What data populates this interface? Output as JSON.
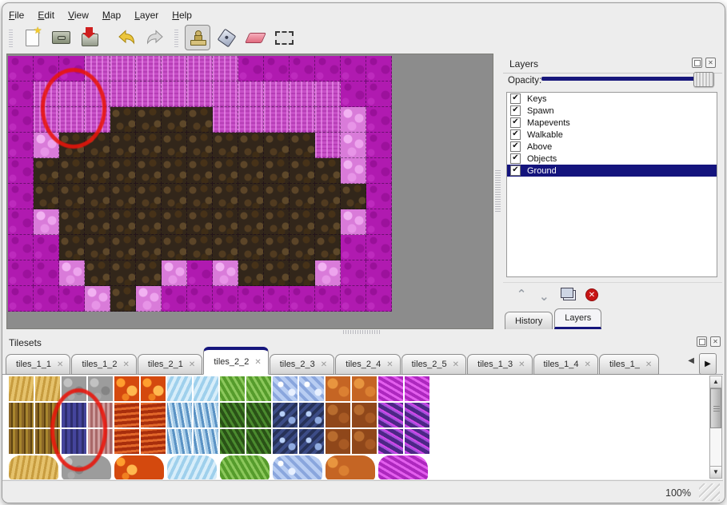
{
  "menu": {
    "items": [
      "File",
      "Edit",
      "View",
      "Map",
      "Layer",
      "Help"
    ]
  },
  "toolbar": {
    "buttons": [
      {
        "name": "new-map",
        "icon": "new-page-icon",
        "active": false
      },
      {
        "name": "open-map",
        "icon": "open-drawer-icon",
        "active": false
      },
      {
        "name": "save-map",
        "icon": "save-import-icon",
        "active": false
      },
      {
        "name": "undo",
        "icon": "undo-arrow-icon",
        "active": false
      },
      {
        "name": "redo",
        "icon": "redo-arrow-icon",
        "active": false
      },
      {
        "name": "stamp-tool",
        "icon": "stamp-icon",
        "active": true
      },
      {
        "name": "fill-tool",
        "icon": "paint-bucket-icon",
        "active": false
      },
      {
        "name": "eraser-tool",
        "icon": "eraser-icon",
        "active": false
      },
      {
        "name": "select-tool",
        "icon": "selection-rect-icon",
        "active": false
      }
    ]
  },
  "map": {
    "tile_size": 32,
    "cols": 15,
    "rows_count": 10,
    "legend": {
      "M": "dark-magenta-ground",
      "W": "bright-magenta-wall",
      "L": "light-pink-tuft",
      "B": "dark-brown-dirt"
    },
    "rows": [
      "MMMWWWWWWMMMMMM",
      "MWWWWWWWWWWWWMM",
      "MWWWBBBBWWWWWLM",
      "MLBBBBBBBBBBWLM",
      "MBBBBBBBBBBBBLM",
      "MBBBBBBBBBBBBBM",
      "MLBBBBBBBBBBBLM",
      "MMBBBBBBBBBBBMM",
      "MMLBBBLMLBBBLMM",
      "MMMLBLMMMMMMMMM"
    ],
    "annotation_color": "#e8150a"
  },
  "layers_panel": {
    "title": "Layers",
    "opacity_label": "Opacity:",
    "opacity_percent": 100,
    "layers": [
      {
        "label": "Keys",
        "checked": true,
        "selected": false
      },
      {
        "label": "Spawn",
        "checked": true,
        "selected": false
      },
      {
        "label": "Mapevents",
        "checked": true,
        "selected": false
      },
      {
        "label": "Walkable",
        "checked": true,
        "selected": false
      },
      {
        "label": "Above",
        "checked": true,
        "selected": false
      },
      {
        "label": "Objects",
        "checked": true,
        "selected": false
      },
      {
        "label": "Ground",
        "checked": true,
        "selected": true
      }
    ],
    "buttons": [
      "raise-layer",
      "lower-layer",
      "duplicate-layer",
      "delete-layer"
    ],
    "tabs": [
      {
        "label": "History",
        "active": false
      },
      {
        "label": "Layers",
        "active": true
      }
    ]
  },
  "tilesets_panel": {
    "title": "Tilesets",
    "active_tab": "tiles_2_2",
    "tabs": [
      {
        "label": "tiles_1_1"
      },
      {
        "label": "tiles_1_2"
      },
      {
        "label": "tiles_2_1"
      },
      {
        "label": "tiles_2_2"
      },
      {
        "label": "tiles_2_3"
      },
      {
        "label": "tiles_2_4"
      },
      {
        "label": "tiles_2_5"
      },
      {
        "label": "tiles_1_3"
      },
      {
        "label": "tiles_1_4"
      },
      {
        "label": "tiles_1_",
        "truncated": true
      }
    ],
    "close_glyph": "✕",
    "palette_rows": [
      [
        "tan",
        "tan",
        "stone",
        "stone",
        "lava",
        "lava",
        "iceL",
        "iceL",
        "grnL",
        "grnL",
        "cryL",
        "cryL",
        "rustL",
        "rustL",
        "magL",
        "magL"
      ],
      [
        "bark",
        "bark",
        "blue",
        "pinkbark",
        "flame",
        "flame",
        "iceD",
        "iceD",
        "grnD",
        "grnD",
        "cryD",
        "cryD",
        "rustD",
        "rustD",
        "purD",
        "purD"
      ],
      [
        "bark",
        "bark",
        "blue",
        "pinkbark",
        "flame",
        "flame",
        "iceD",
        "iceD",
        "grnD",
        "grnD",
        "cryD",
        "cryD",
        "rustD",
        "rustD",
        "purD",
        "purD"
      ]
    ],
    "blob_row": [
      "tan",
      "stone",
      "lava",
      "iceL",
      "grnL",
      "cryL",
      "rustL",
      "magL"
    ],
    "annotation_color": "#e8150a"
  },
  "status_bar": {
    "zoom": "100%"
  },
  "colors": {
    "accent_navy": "#15157c",
    "selection_bg": "#14147d",
    "map_empty_gray": "#8c8c8c",
    "annotation_red": "#e8150a"
  }
}
